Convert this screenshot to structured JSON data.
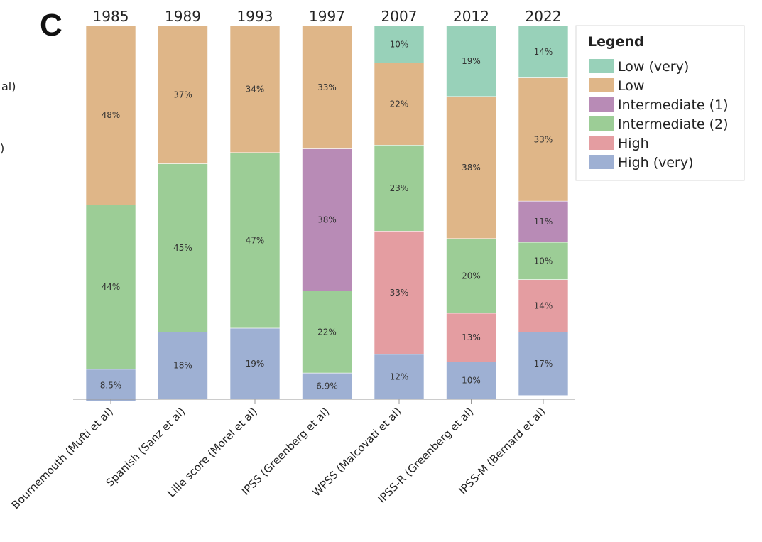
{
  "panel_letter": "C",
  "cut_labels": [
    "al)",
    ")"
  ],
  "chart_data": {
    "type": "bar",
    "stacked": true,
    "normalized": true,
    "title": "",
    "xlabel": "",
    "ylabel": "",
    "ylim": [
      0,
      100
    ],
    "grid": false,
    "legend_position": "top-right",
    "categories": [
      "Bournemouth (Mufti et al)",
      "Spanish (Sanz et al)",
      "Lille score (Morel et al)",
      "IPSS (Greenberg et al)",
      "WPSS (Malcovati et al)",
      "IPSS-R (Greenberg et al)",
      "IPSS-M (Bernard et al)"
    ],
    "years": [
      "1985",
      "1989",
      "1993",
      "1997",
      "2007",
      "2012",
      "2022"
    ],
    "legend_title": "Legend",
    "series": [
      {
        "name": "Low (very)",
        "color": "#98d1b9",
        "values": [
          0,
          0,
          0,
          0,
          10,
          19,
          14
        ],
        "labels": [
          "",
          "",
          "",
          "",
          "10%",
          "19%",
          "14%"
        ]
      },
      {
        "name": "Low",
        "color": "#dfb688",
        "values": [
          48,
          37,
          34,
          33,
          22,
          38,
          33
        ],
        "labels": [
          "48%",
          "37%",
          "34%",
          "33%",
          "22%",
          "38%",
          "33%"
        ]
      },
      {
        "name": "Intermediate (1)",
        "color": "#b88bb6",
        "values": [
          0,
          0,
          0,
          38,
          0,
          0,
          11
        ],
        "labels": [
          "",
          "",
          "",
          "38%",
          "",
          "",
          "11%"
        ]
      },
      {
        "name": "Intermediate (2)",
        "color": "#9ccd96",
        "values": [
          44,
          45,
          47,
          22,
          23,
          20,
          10
        ],
        "labels": [
          "44%",
          "45%",
          "47%",
          "22%",
          "23%",
          "20%",
          "10%"
        ]
      },
      {
        "name": "High",
        "color": "#e49da1",
        "values": [
          0,
          0,
          0,
          0,
          33,
          13,
          14
        ],
        "labels": [
          "",
          "",
          "",
          "",
          "33%",
          "13%",
          "14%"
        ]
      },
      {
        "name": "High (very)",
        "color": "#9eb0d3",
        "values": [
          8.5,
          18,
          19,
          6.9,
          12,
          10,
          17
        ],
        "labels": [
          "8.5%",
          "18%",
          "19%",
          "6.9%",
          "12%",
          "10%",
          "17%"
        ]
      }
    ]
  }
}
